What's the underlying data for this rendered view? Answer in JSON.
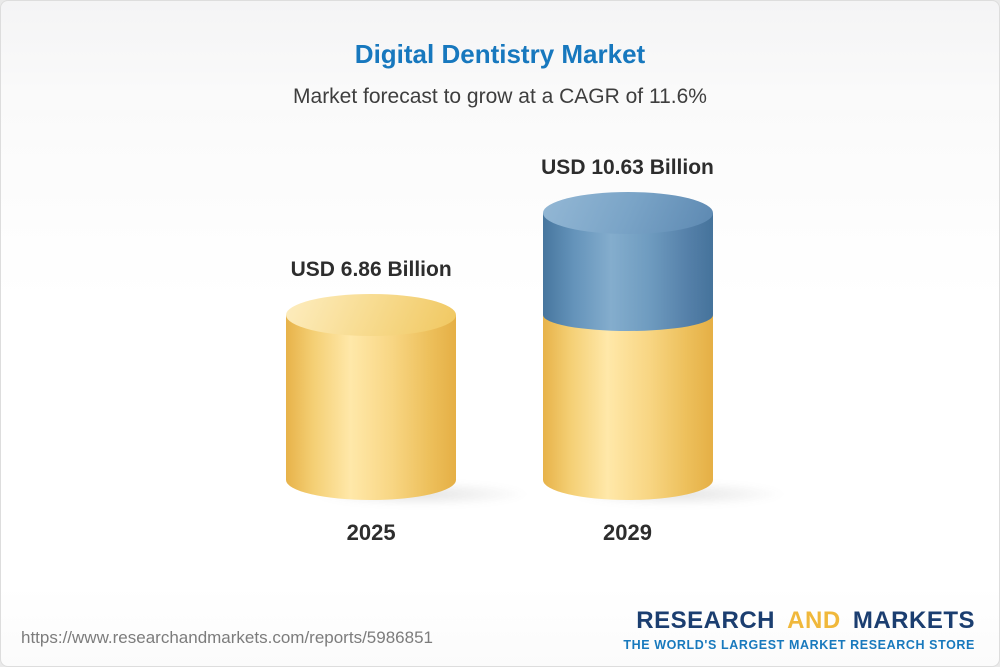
{
  "header": {
    "title": "Digital Dentistry Market",
    "subtitle": "Market forecast to grow at a CAGR of 11.6%"
  },
  "chart_data": {
    "type": "bar",
    "title": "Digital Dentistry Market",
    "subtitle": "Market forecast to grow at a CAGR of 11.6%",
    "categories": [
      "2025",
      "2029"
    ],
    "values": [
      6.86,
      10.63
    ],
    "value_labels": [
      "USD 6.86 Billion",
      "USD 10.63 Billion"
    ],
    "unit": "USD Billion",
    "cagr_percent": 11.6,
    "ylim": [
      0,
      11
    ],
    "legend_position": "none",
    "grid": false,
    "colors": {
      "base_segment": "#F3CC6A",
      "growth_segment": "#6796BC",
      "title_text": "#1778BE"
    }
  },
  "footer": {
    "url": "https://www.researchandmarkets.com/reports/5986851",
    "logo": {
      "word1": "RESEARCH",
      "word2": "AND",
      "word3": "MARKETS",
      "tagline": "THE WORLD'S LARGEST MARKET RESEARCH STORE"
    }
  }
}
